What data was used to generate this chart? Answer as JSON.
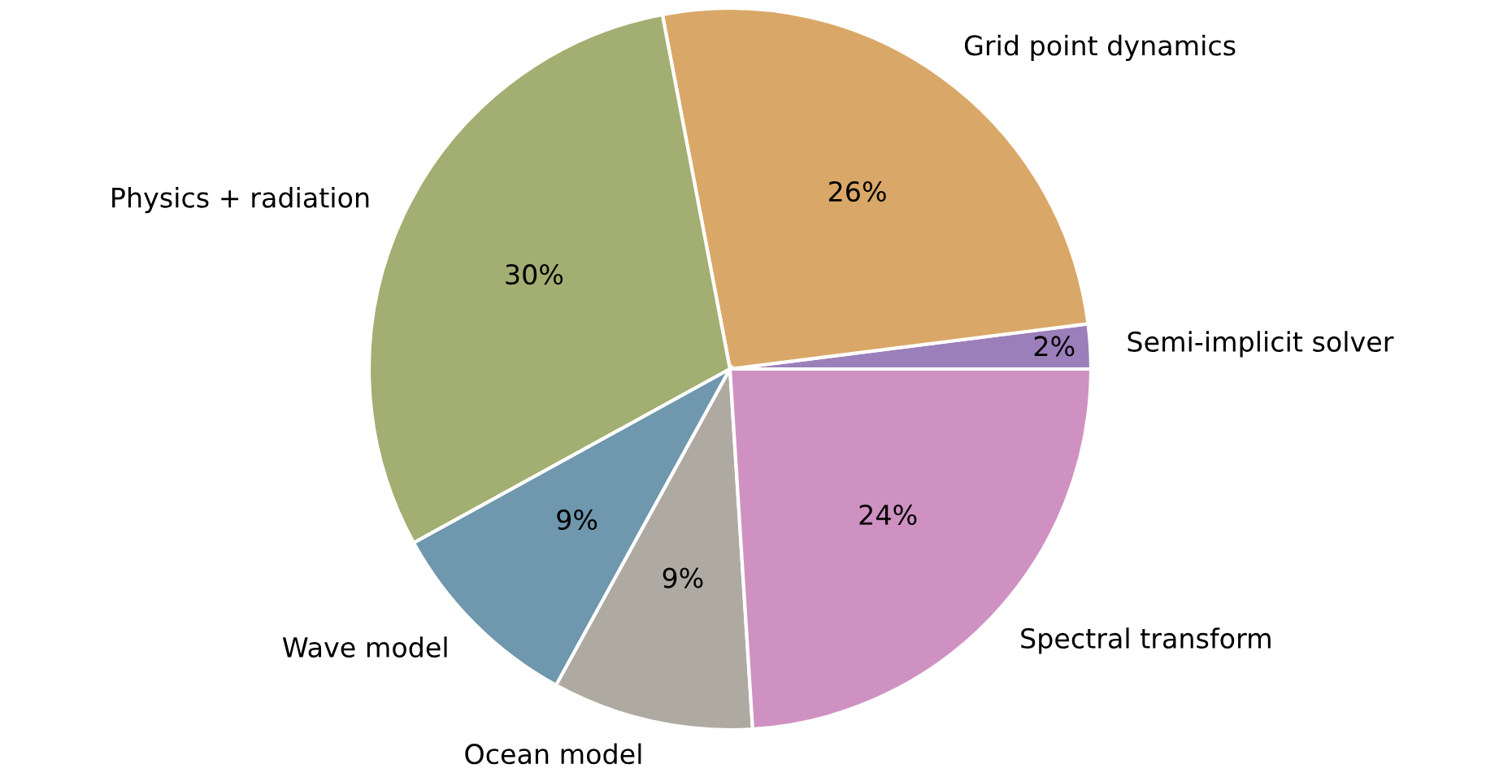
{
  "chart_data": {
    "type": "pie",
    "categories": [
      "Semi-implicit solver",
      "Grid point dynamics",
      "Physics + radiation",
      "Wave model",
      "Ocean model",
      "Spectral transform"
    ],
    "values": [
      2,
      26,
      30,
      9,
      9,
      24
    ],
    "colors": [
      "#9b7fba",
      "#d9a868",
      "#a3ae72",
      "#6f97ad",
      "#aeaaa2",
      "#cf91c2"
    ],
    "value_labels": [
      "2%",
      "26%",
      "30%",
      "9%",
      "9%",
      "24%"
    ]
  }
}
